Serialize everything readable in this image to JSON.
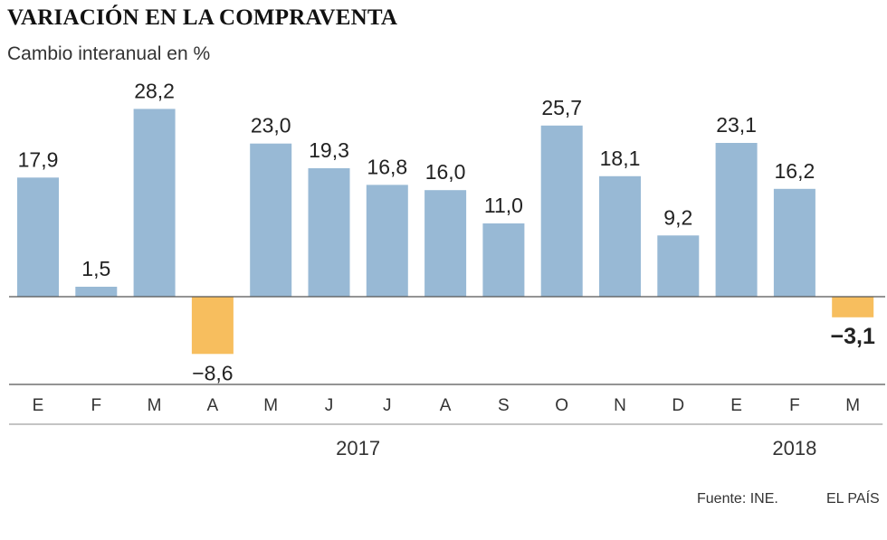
{
  "title": "VARIACIÓN EN LA COMPRAVENTA",
  "subtitle": "Cambio interanual en %",
  "source": "Fuente: INE.",
  "brand": "EL PAÍS",
  "chart_data": {
    "type": "bar",
    "categories": [
      "E",
      "F",
      "M",
      "A",
      "M",
      "J",
      "J",
      "A",
      "S",
      "O",
      "N",
      "D",
      "E",
      "F",
      "M"
    ],
    "values": [
      17.9,
      1.5,
      28.2,
      -8.6,
      23.0,
      19.3,
      16.8,
      16.0,
      11.0,
      25.7,
      18.1,
      9.2,
      23.1,
      16.2,
      -3.1
    ],
    "value_labels": [
      "17,9",
      "1,5",
      "28,2",
      "−8,6",
      "23,0",
      "19,3",
      "16,8",
      "16,0",
      "11,0",
      "25,7",
      "18,1",
      "9,2",
      "23,1",
      "16,2",
      "−3,1"
    ],
    "groups": [
      {
        "label": "2017",
        "from": 0,
        "to": 11
      },
      {
        "label": "2018",
        "from": 12,
        "to": 14
      }
    ],
    "colors": {
      "positive": "#98b9d5",
      "negative": "#f7be5e",
      "axis": "#555555"
    }
  }
}
